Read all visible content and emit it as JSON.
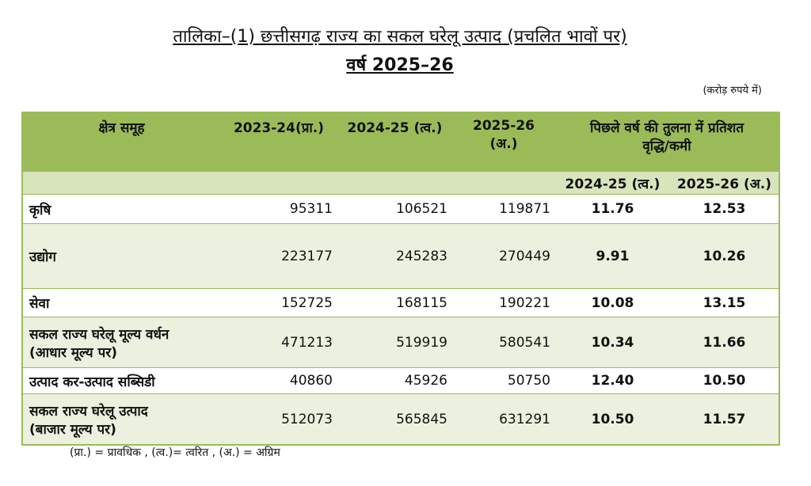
{
  "header": {
    "title": "तालिका–(1) छत्तीसगढ़ राज्य का सकल घरेलू उत्पाद (प्रचलित भावों पर)",
    "subtitle": "वर्ष 2025–26",
    "unit_note": "(करोड़ रुपये में)"
  },
  "table": {
    "header": [
      "क्षेत्र समूह",
      "2023-24(प्रा.)",
      "2024-25 (त्व.)",
      "2025-26 (अ.)",
      [
        "पिछले वर्ष की तुलना में प्रतिशत",
        "वृद्धि/कमी"
      ]
    ],
    "subheader": [
      "2024-25 (त्व.)",
      "2025-26 (अ.)"
    ],
    "rows": [
      [
        [
          "कृषि"
        ],
        "95311",
        "106521",
        "119871",
        "11.76",
        "12.53"
      ],
      [
        [
          "उद्योग"
        ],
        "223177",
        "245283",
        "270449",
        "9.91",
        "10.26"
      ],
      [
        [
          "सेवा"
        ],
        "152725",
        "168115",
        "190221",
        "10.08",
        "13.15"
      ],
      [
        [
          "सकल राज्य घरेलू मूल्य वर्धन",
          "(आधार मूल्य पर)"
        ],
        "471213",
        "519919",
        "580541",
        "10.34",
        "11.66"
      ],
      [
        [
          "उत्पाद कर-उत्पाद सब्सिडी"
        ],
        "40860",
        "45926",
        "50750",
        "12.40",
        "10.50"
      ],
      [
        [
          "सकल राज्य घरेलू उत्पाद",
          "(बाजार मूल्य पर)"
        ],
        "512073",
        "565845",
        "631291",
        "10.50",
        "11.57"
      ]
    ]
  },
  "footnote": "(प्रा.) = प्रावधिक , (त्व.)= त्वरित , (अ.) = अग्रिम"
}
